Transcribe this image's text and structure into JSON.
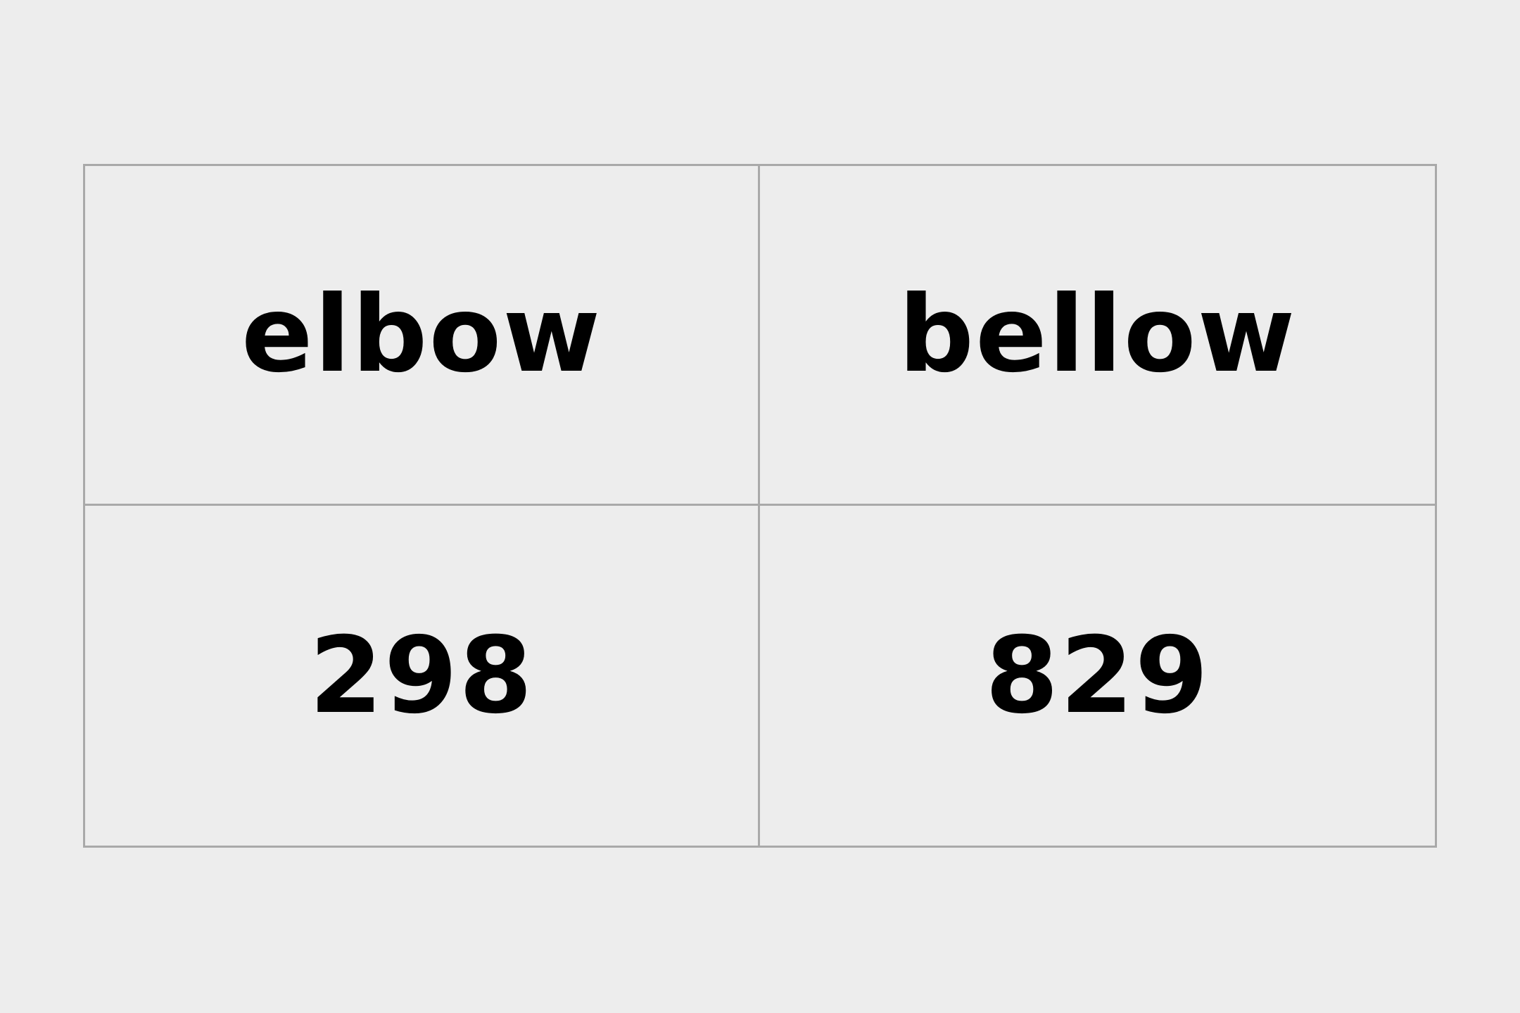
{
  "table": {
    "rows": [
      [
        "elbow",
        "bellow"
      ],
      [
        "298",
        "829"
      ]
    ]
  },
  "colors": {
    "background": "#ededed",
    "border": "#a9a9a9",
    "text": "#000000"
  }
}
